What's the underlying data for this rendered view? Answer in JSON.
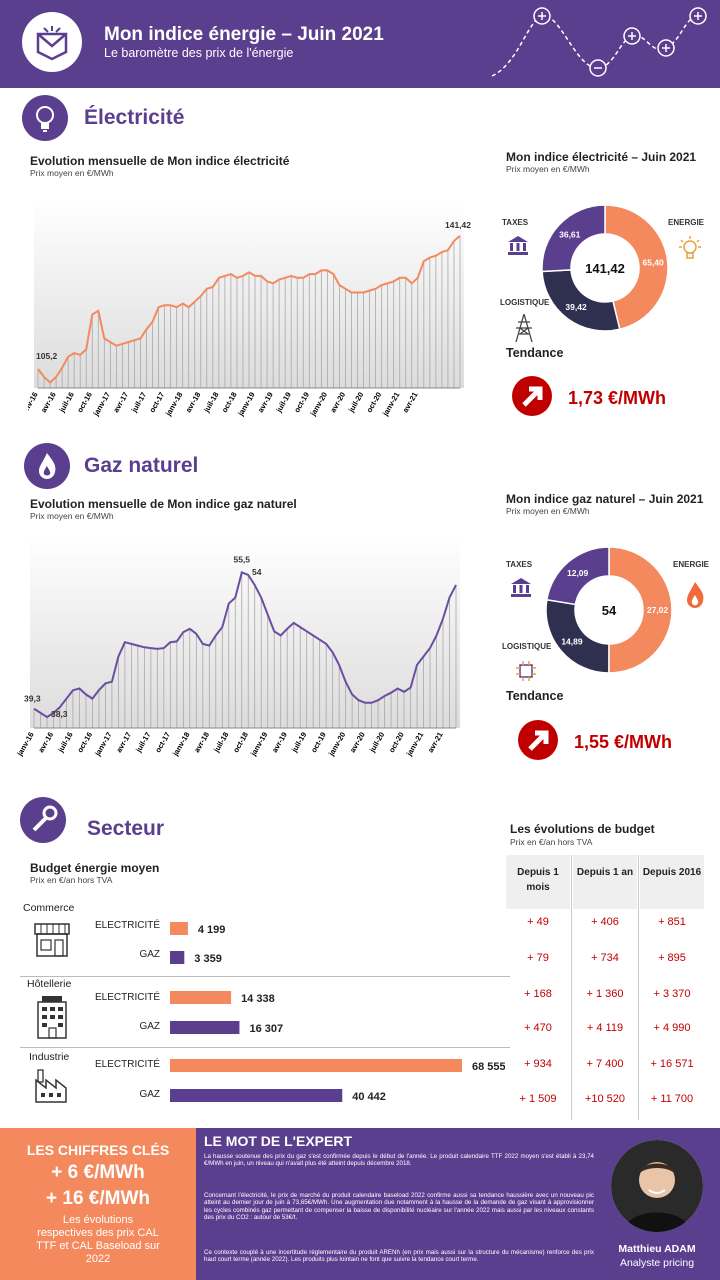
{
  "header": {
    "title": "Mon indice énergie – Juin 2021",
    "subtitle": "Le baromètre des prix de l'énergie"
  },
  "colors": {
    "purple": "#5b3f8f",
    "orange": "#f4895e",
    "dark": "#2f2f4f",
    "red": "#c00000"
  },
  "electricite": {
    "section_title": "Électricité",
    "line_title": "Evolution mensuelle de Mon indice électricité",
    "line_unit": "Prix moyen en €/MWh",
    "donut_title": "Mon indice électricité – Juin 2021",
    "donut_unit": "Prix moyen en €/MWh",
    "label_taxes": "TAXES",
    "label_energie": "ENERGIE",
    "label_logistique": "LOGISTIQUE",
    "trend_label": "Tendance",
    "trend_value": "1,73 €/MWh"
  },
  "gaz": {
    "section_title": "Gaz naturel",
    "line_title": "Evolution mensuelle de Mon indice gaz naturel",
    "line_unit": "Prix moyen en €/MWh",
    "donut_title": "Mon indice gaz naturel – Juin 2021",
    "donut_unit": "Prix moyen en €/MWh",
    "label_taxes": "TAXES",
    "label_energie": "ENERGIE",
    "label_logistique": "LOGISTIQUE",
    "trend_label": "Tendance",
    "trend_value": "1,55 €/MWh"
  },
  "secteur": {
    "section_title": "Secteur",
    "budget_title": "Budget énergie moyen",
    "budget_unit": "Prix en €/an hors TVA",
    "evol_title": "Les évolutions de budget",
    "evol_unit": "Prix en €/an hors TVA",
    "col_headers": [
      "Depuis 1 mois",
      "Depuis 1 an",
      "Depuis 2016"
    ],
    "sectors": [
      "Commerce",
      "Hôtellerie",
      "Industrie"
    ],
    "bar_labels": [
      "ELECTRICITÉ",
      "GAZ"
    ]
  },
  "keys": {
    "title": "LES CHIFFRES CLÉS",
    "line1": "+ 6 €/MWh",
    "line2": "+ 16 €/MWh",
    "desc": "Les évolutions respectives des prix CAL TTF et CAL Baseload sur 2022"
  },
  "expert": {
    "title": "LE MOT DE L'EXPERT",
    "p1": "La hausse soutenue des prix du gaz s'est confirmée depuis le début de l'année. Le produit calendaire TTF 2022 moyen s'est établi à 23,74 €/MWh en juin, un niveau qui n'avait plus été atteint depuis décembre 2018.",
    "p2": "Concernant l'électricité, le prix de marché du produit calendaire baseload 2022 confirme aussi sa tendance haussière avec un nouveau pic atteint au dernier jour de juin à 73,65€/MWh. Une augmentation due notamment à la hausse de la demande de gaz visant à approvisionner les cycles combinés gaz permettant de compenser la baisse de disponibilité nucléaire sur l'année 2022 mais aussi par les niveaux constants des prix du CO2 : autour de 53€/t.",
    "p3": "Ce contexte couplé à une incertitude réglementaire du produit ARENh (en prix mais aussi sur la structure du mécanisme) renforce des prix haut court terme (année 2022). Les produits plus lointain ne font que suivre la tendance court terme.",
    "name": "Matthieu ADAM",
    "role": "Analyste pricing"
  },
  "chart_data": [
    {
      "type": "area",
      "title": "Evolution mensuelle de Mon indice électricité",
      "ylabel": "Prix moyen en €/MWh",
      "tick_labels": [
        "janv-16",
        "avr-16",
        "juil-16",
        "oct-16",
        "janv-17",
        "avr-17",
        "juil-17",
        "oct-17",
        "janv-18",
        "avr-18",
        "juil-18",
        "oct-18",
        "janv-19",
        "avr-19",
        "juil-19",
        "oct-19",
        "janv-20",
        "avr-20",
        "juil-20",
        "oct-20",
        "janv-21",
        "avr-21"
      ],
      "values": [
        105.2,
        103,
        101.5,
        103,
        105.5,
        108.5,
        109.5,
        109,
        110.5,
        120,
        121,
        113.5,
        112.5,
        111.5,
        112,
        112.5,
        113,
        113.5,
        116,
        118,
        122,
        122.5,
        122.5,
        122,
        123,
        122,
        123.5,
        125,
        127,
        127.5,
        130,
        130.5,
        131,
        130,
        130.5,
        131.5,
        130.5,
        130.5,
        129,
        128.5,
        129.5,
        130,
        130.5,
        130,
        130,
        131,
        131,
        132,
        132,
        131,
        128,
        127,
        126,
        126,
        126,
        126.5,
        127,
        128,
        128.5,
        129,
        130,
        130,
        128.5,
        130,
        134.5,
        135.5,
        136,
        137,
        137.5,
        140,
        141.42
      ],
      "annotations": [
        {
          "label": "105,2",
          "value": 105.2
        },
        {
          "label": "141,42",
          "value": 141.42
        }
      ],
      "ylim": [
        100,
        143
      ]
    },
    {
      "type": "pie",
      "title": "Mon indice électricité – Juin 2021",
      "center_label": "141,42",
      "slices": [
        {
          "name": "ENERGIE",
          "value": 65.4,
          "label": "65,40",
          "color": "#f4895e"
        },
        {
          "name": "LOGISTIQUE",
          "value": 39.42,
          "label": "39,42",
          "color": "#2f2f4f"
        },
        {
          "name": "TAXES",
          "value": 36.61,
          "label": "36,61",
          "color": "#5b3f8f"
        }
      ]
    },
    {
      "type": "area",
      "title": "Evolution mensuelle de Mon indice gaz naturel",
      "ylabel": "Prix moyen en €/MWh",
      "tick_labels": [
        "janv-16",
        "avr-16",
        "juil-16",
        "oct-16",
        "janv-17",
        "avr-17",
        "juil-17",
        "oct-17",
        "janv-18",
        "avr-18",
        "juil-18",
        "oct-18",
        "janv-19",
        "avr-19",
        "juil-19",
        "oct-19",
        "janv-20",
        "avr-20",
        "juil-20",
        "oct-20",
        "janv-21",
        "avr-21"
      ],
      "values": [
        39.3,
        38.8,
        38.3,
        38.8,
        39.5,
        40.5,
        41.5,
        41.7,
        41,
        40.5,
        41.5,
        42.3,
        42.5,
        45.5,
        47.2,
        47,
        46.8,
        46.6,
        46.5,
        46.4,
        46.5,
        47.2,
        47.3,
        48.4,
        48.8,
        48.2,
        47,
        46.8,
        48,
        49,
        51.8,
        52.5,
        55.5,
        55.2,
        54,
        52.5,
        50.5,
        48.5,
        48,
        48.8,
        49.5,
        49,
        48.5,
        48,
        47.5,
        47,
        46,
        44.5,
        42.5,
        41,
        40.3,
        40,
        40,
        40.3,
        40.8,
        41.2,
        41.7,
        41.3,
        41.8,
        44.5,
        45.5,
        46.5,
        48,
        50,
        52.5,
        54
      ],
      "annotations": [
        {
          "label": "39,3",
          "value": 39.3
        },
        {
          "label": "38,3",
          "value": 38.3
        },
        {
          "label": "55,5",
          "value": 55.5
        },
        {
          "label": "54",
          "value": 54
        }
      ],
      "ylim": [
        37,
        56.5
      ]
    },
    {
      "type": "pie",
      "title": "Mon indice gaz naturel – Juin 2021",
      "center_label": "54",
      "slices": [
        {
          "name": "ENERGIE",
          "value": 27.02,
          "label": "27,02",
          "color": "#f4895e"
        },
        {
          "name": "LOGISTIQUE",
          "value": 14.89,
          "label": "14,89",
          "color": "#2f2f4f"
        },
        {
          "name": "TAXES",
          "value": 12.09,
          "label": "12,09",
          "color": "#5b3f8f"
        }
      ]
    },
    {
      "type": "bar",
      "title": "Budget énergie moyen",
      "ylabel": "Prix en €/an hors TVA",
      "categories": [
        "Commerce ELECTRICITÉ",
        "Commerce GAZ",
        "Hôtellerie ELECTRICITÉ",
        "Hôtellerie GAZ",
        "Industrie ELECTRICITÉ",
        "Industrie GAZ"
      ],
      "values": [
        4199,
        3359,
        14338,
        16307,
        68555,
        40442
      ],
      "value_labels": [
        "4 199",
        "3 359",
        "14 338",
        "16 307",
        "68 555",
        "40 442"
      ],
      "colors": [
        "#f4895e",
        "#5b3f8f",
        "#f4895e",
        "#5b3f8f",
        "#f4895e",
        "#5b3f8f"
      ]
    },
    {
      "type": "table",
      "title": "Les évolutions de budget",
      "columns": [
        "Depuis 1 mois",
        "Depuis 1 an",
        "Depuis 2016"
      ],
      "rows": [
        [
          "+ 49",
          "+ 406",
          "+ 851"
        ],
        [
          "+ 79",
          "+ 734",
          "+ 895"
        ],
        [
          "+ 168",
          "+ 1 360",
          "+ 3 370"
        ],
        [
          "+ 470",
          "+ 4 119",
          "+ 4 990"
        ],
        [
          "+ 934",
          "+ 7 400",
          "+ 16 571"
        ],
        [
          "+ 1 509",
          "+10 520",
          "+ 11 700"
        ]
      ]
    }
  ]
}
